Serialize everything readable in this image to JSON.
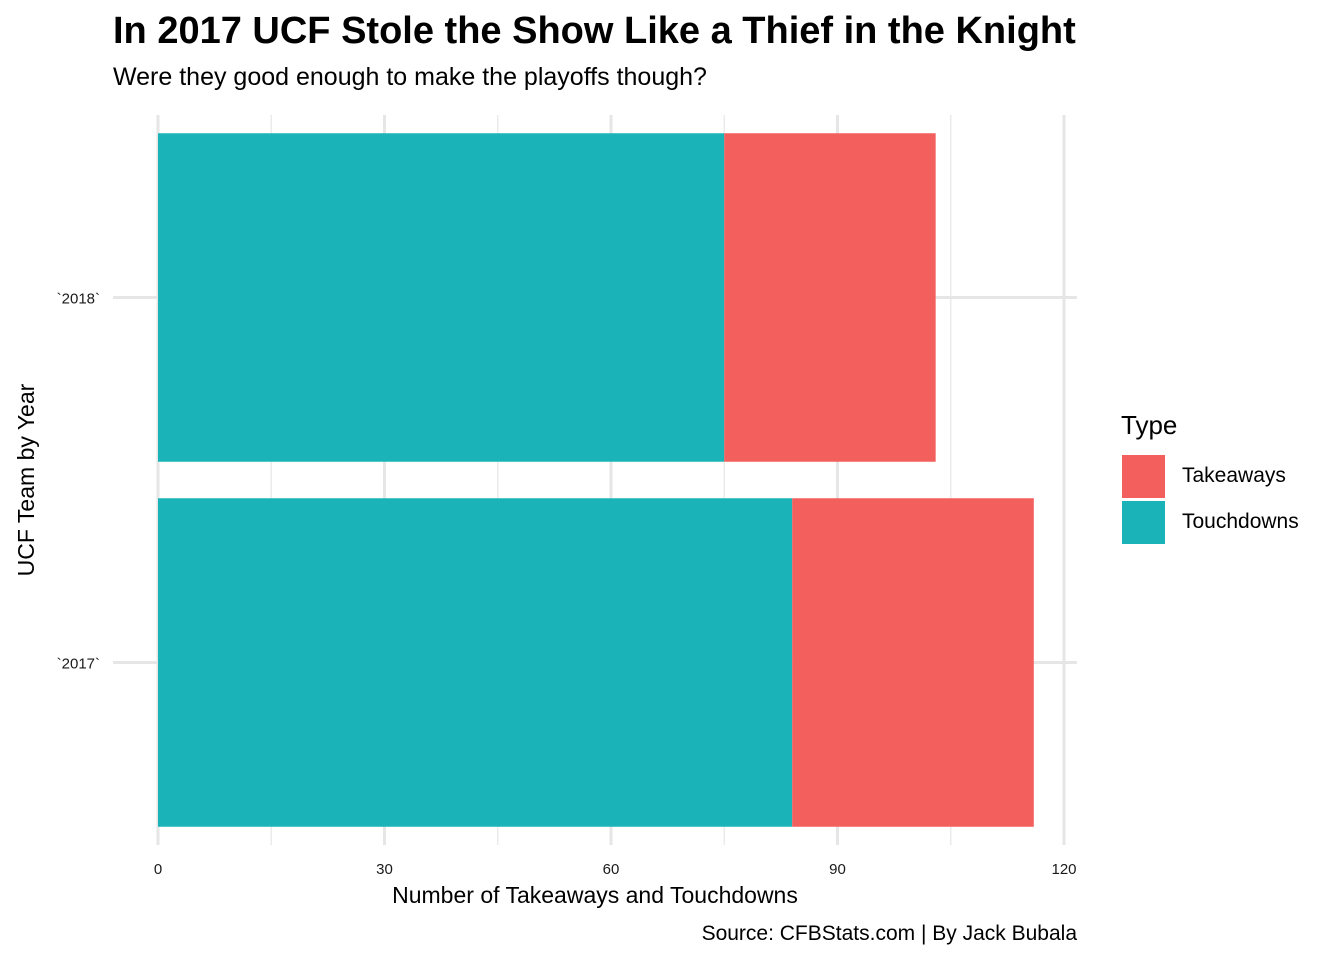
{
  "title": "In 2017 UCF Stole the Show Like a Thief in the Knight",
  "subtitle": "Were they good enough to make the playoffs though?",
  "caption": "Source: CFBStats.com | By Jack Bubala",
  "legend": {
    "title": "Type",
    "items": [
      {
        "label": "Takeaways",
        "color": "#F25F5C"
      },
      {
        "label": "Touchdowns",
        "color": "#1AB3B7"
      }
    ]
  },
  "chart_data": {
    "type": "bar",
    "orientation": "horizontal",
    "stacked": true,
    "title": "In 2017 UCF Stole the Show Like a Thief in the Knight",
    "subtitle": "Were they good enough to make the playoffs though?",
    "xlabel": "Number of Takeaways and Touchdowns",
    "ylabel": "UCF Team by Year",
    "categories": [
      "`2018`",
      "`2017`"
    ],
    "series": [
      {
        "name": "Touchdowns",
        "color": "#1AB3B7",
        "values": [
          75,
          84
        ]
      },
      {
        "name": "Takeaways",
        "color": "#F25F5C",
        "values": [
          28,
          32
        ]
      }
    ],
    "xlim": [
      0,
      120
    ],
    "xticks": [
      0,
      30,
      60,
      90,
      120
    ],
    "grid": true,
    "legend_position": "right"
  }
}
